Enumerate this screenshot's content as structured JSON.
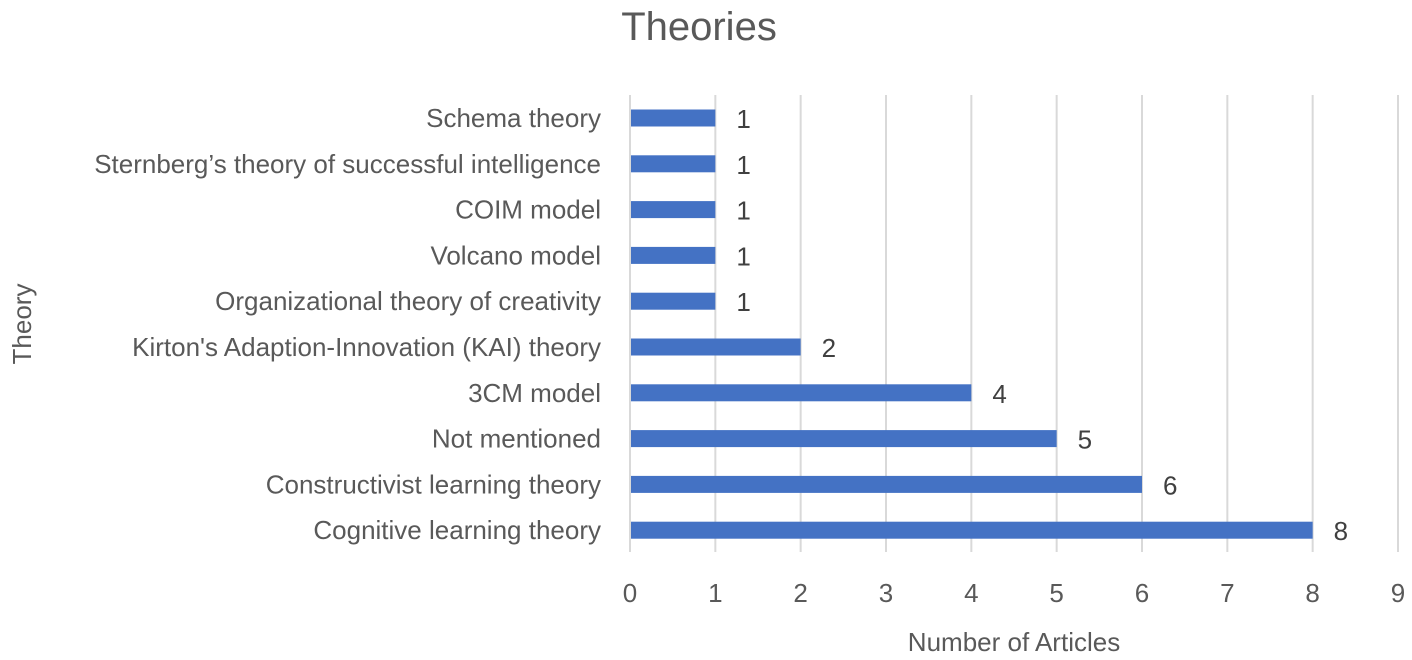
{
  "chart_data": {
    "type": "bar",
    "orientation": "horizontal",
    "title": "Theories",
    "xlabel": "Number of Articles",
    "ylabel": "Theory",
    "categories": [
      "Schema theory",
      "Sternberg’s theory of successful intelligence",
      "COIM model",
      "Volcano model",
      "Organizational theory of creativity",
      "Kirton's Adaption-Innovation (KAI) theory",
      "3CM model",
      "Not mentioned",
      "Constructivist learning theory",
      "Cognitive learning theory"
    ],
    "values": [
      1,
      1,
      1,
      1,
      1,
      2,
      4,
      5,
      6,
      8
    ],
    "xlim": [
      0,
      9
    ],
    "xticks": [
      0,
      1,
      2,
      3,
      4,
      5,
      6,
      7,
      8,
      9
    ],
    "grid": true,
    "data_labels": true,
    "bar_color": "#4472c4",
    "legend": "none"
  }
}
